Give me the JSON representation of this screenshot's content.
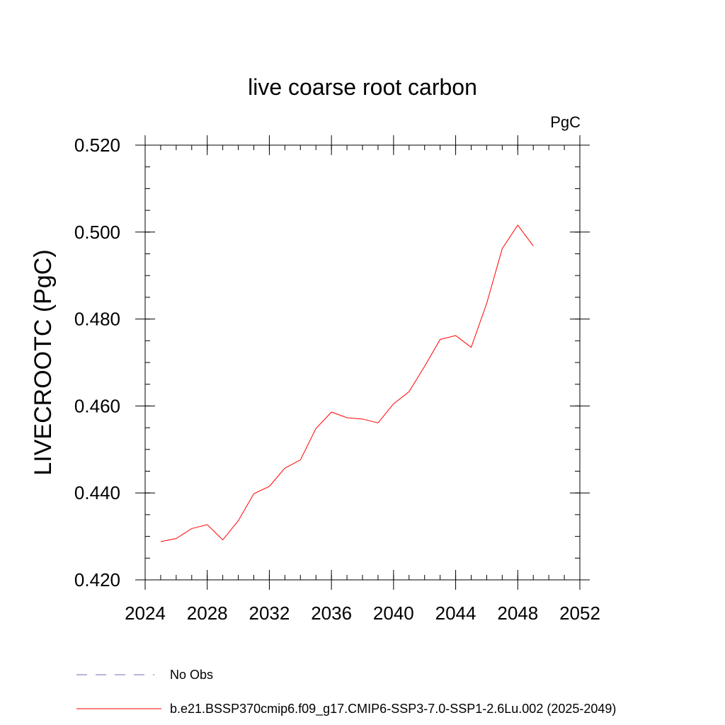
{
  "chart_data": {
    "type": "line",
    "title": "live coarse root carbon",
    "units": "PgC",
    "ylabel": "LIVECROOTC  (PgC)",
    "xlabel": "",
    "xlim": [
      2024,
      2052
    ],
    "ylim": [
      0.42,
      0.52
    ],
    "xticks": [
      2024,
      2028,
      2032,
      2036,
      2040,
      2044,
      2048,
      2052
    ],
    "xtick_labels": [
      "2024",
      "2028",
      "2032",
      "2036",
      "2040",
      "2044",
      "2048",
      "2052"
    ],
    "yticks": [
      0.42,
      0.44,
      0.46,
      0.48,
      0.5,
      0.52
    ],
    "ytick_labels": [
      "0.420",
      "0.440",
      "0.460",
      "0.480",
      "0.500",
      "0.520"
    ],
    "grid": false,
    "legend_position": "bottom",
    "series": [
      {
        "name": "b.e21.BSSP370cmip6.f09_g17.CMIP6-SSP3-7.0-SSP1-2.6Lu.002 (2025-2049)",
        "color": "#ff0000",
        "style": "solid",
        "x": [
          2025,
          2026,
          2027,
          2028,
          2029,
          2030,
          2031,
          2032,
          2033,
          2034,
          2035,
          2036,
          2037,
          2038,
          2039,
          2040,
          2041,
          2042,
          2043,
          2044,
          2045,
          2046,
          2047,
          2048,
          2049
        ],
        "y": [
          0.4288,
          0.4295,
          0.4318,
          0.4327,
          0.4292,
          0.4336,
          0.4398,
          0.4415,
          0.4457,
          0.4476,
          0.4548,
          0.4586,
          0.4573,
          0.457,
          0.4561,
          0.4605,
          0.4633,
          0.4691,
          0.4753,
          0.4762,
          0.4735,
          0.4836,
          0.4962,
          0.5016,
          0.4968
        ]
      },
      {
        "name": "No Obs",
        "color": "#7b68b0",
        "style": "dashed",
        "x": [],
        "y": []
      }
    ]
  }
}
